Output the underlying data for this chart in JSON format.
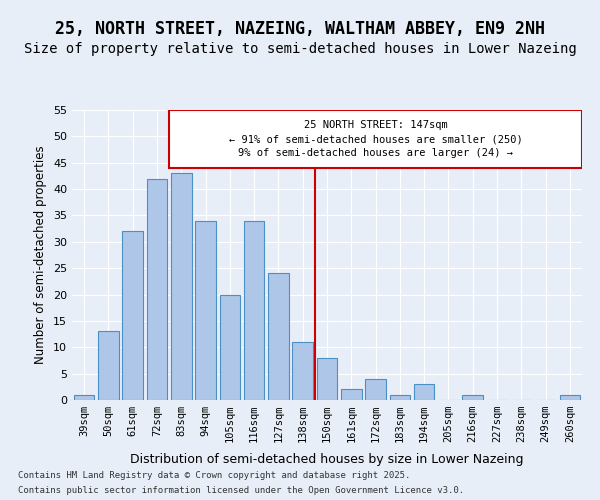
{
  "title": "25, NORTH STREET, NAZEING, WALTHAM ABBEY, EN9 2NH",
  "subtitle": "Size of property relative to semi-detached houses in Lower Nazeing",
  "xlabel": "Distribution of semi-detached houses by size in Lower Nazeing",
  "ylabel": "Number of semi-detached properties",
  "categories": [
    "39sqm",
    "50sqm",
    "61sqm",
    "72sqm",
    "83sqm",
    "94sqm",
    "105sqm",
    "116sqm",
    "127sqm",
    "138sqm",
    "150sqm",
    "161sqm",
    "172sqm",
    "183sqm",
    "194sqm",
    "205sqm",
    "216sqm",
    "227sqm",
    "238sqm",
    "249sqm",
    "260sqm"
  ],
  "values": [
    1,
    13,
    32,
    42,
    43,
    34,
    20,
    34,
    24,
    11,
    8,
    2,
    4,
    1,
    3,
    0,
    1,
    0,
    0,
    0,
    1
  ],
  "bar_color": "#aec6e8",
  "bar_edgecolor": "#4a90c4",
  "highlight_index": 9,
  "property_size": 147,
  "property_label": "25 NORTH STREET: 147sqm",
  "pct_smaller": 91,
  "count_smaller": 250,
  "pct_larger": 9,
  "count_larger": 24,
  "vline_x": 9.5,
  "ylim": [
    0,
    55
  ],
  "yticks": [
    0,
    5,
    10,
    15,
    20,
    25,
    30,
    35,
    40,
    45,
    50,
    55
  ],
  "background_color": "#e8eef7",
  "plot_background": "#e8eef7",
  "footnote1": "Contains HM Land Registry data © Crown copyright and database right 2025.",
  "footnote2": "Contains public sector information licensed under the Open Government Licence v3.0.",
  "title_fontsize": 12,
  "subtitle_fontsize": 10,
  "annotation_box_color": "#cc0000",
  "vline_color": "#cc0000"
}
